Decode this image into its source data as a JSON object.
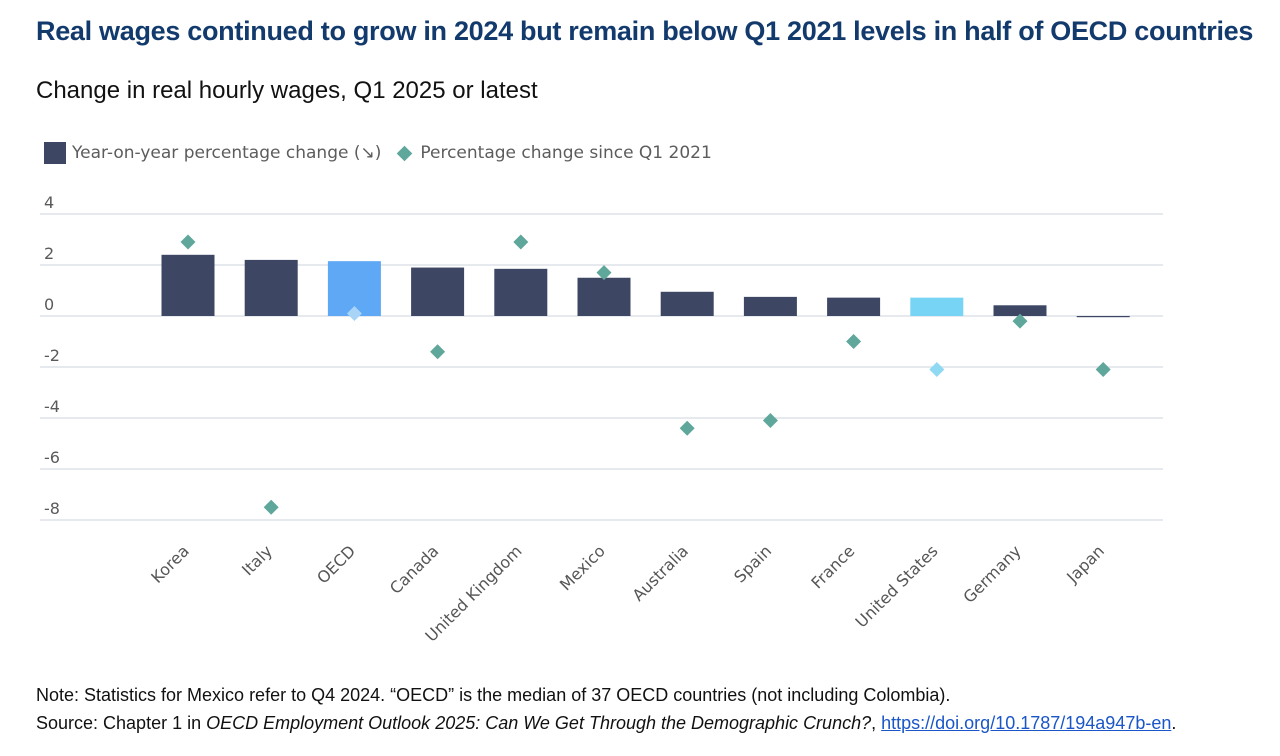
{
  "title": "Real wages continued to grow in 2024 but remain below Q1 2021 levels in half of OECD countries",
  "subtitle": "Change in real hourly wages, Q1 2025 or latest",
  "legend": {
    "bars_label": "Year-on-year percentage change (↘)",
    "points_label": "Percentage change since Q1 2021"
  },
  "colors": {
    "bar": "#3d4764",
    "bar_oecd": "#5ea8f5",
    "bar_us": "#77d4f4",
    "point": "#5fa79b",
    "point_oecd": "#a7d4f7",
    "point_us": "#8fd9f3",
    "grid": "#dde2e8",
    "title": "#123a6d"
  },
  "chart_data": {
    "type": "bar",
    "title": "Change in real hourly wages, Q1 2025 or latest",
    "xlabel": "",
    "ylabel": "",
    "ylim": [
      -8,
      4
    ],
    "yticks": [
      "4",
      "2",
      "0",
      "-2",
      "-4",
      "-6",
      "-8"
    ],
    "categories": [
      "Korea",
      "Italy",
      "OECD",
      "Canada",
      "United Kingdom",
      "Mexico",
      "Australia",
      "Spain",
      "France",
      "United States",
      "Germany",
      "Japan"
    ],
    "series": [
      {
        "name": "Year-on-year percentage change (↘)",
        "kind": "bar",
        "values": [
          2.4,
          2.2,
          2.15,
          1.9,
          1.85,
          1.5,
          0.95,
          0.75,
          0.72,
          0.72,
          0.42,
          -0.04
        ]
      },
      {
        "name": "Percentage change since Q1 2021",
        "kind": "point",
        "values": [
          2.9,
          -7.5,
          0.1,
          -1.4,
          2.9,
          1.7,
          -4.4,
          -4.1,
          -1.0,
          -2.1,
          -0.2,
          -2.1
        ]
      }
    ],
    "highlight": [
      "OECD",
      "United States"
    ]
  },
  "note": {
    "line1": "Note: Statistics for Mexico refer to Q4 2024. “OECD” is the median of 37 OECD countries (not including Colombia).",
    "source_prefix": "Source: Chapter 1 in ",
    "source_title": "OECD Employment Outlook 2025: Can We Get Through the Demographic Crunch?",
    "source_sep": ", ",
    "source_link": "https://doi.org/10.1787/194a947b-en",
    "source_end": "."
  }
}
